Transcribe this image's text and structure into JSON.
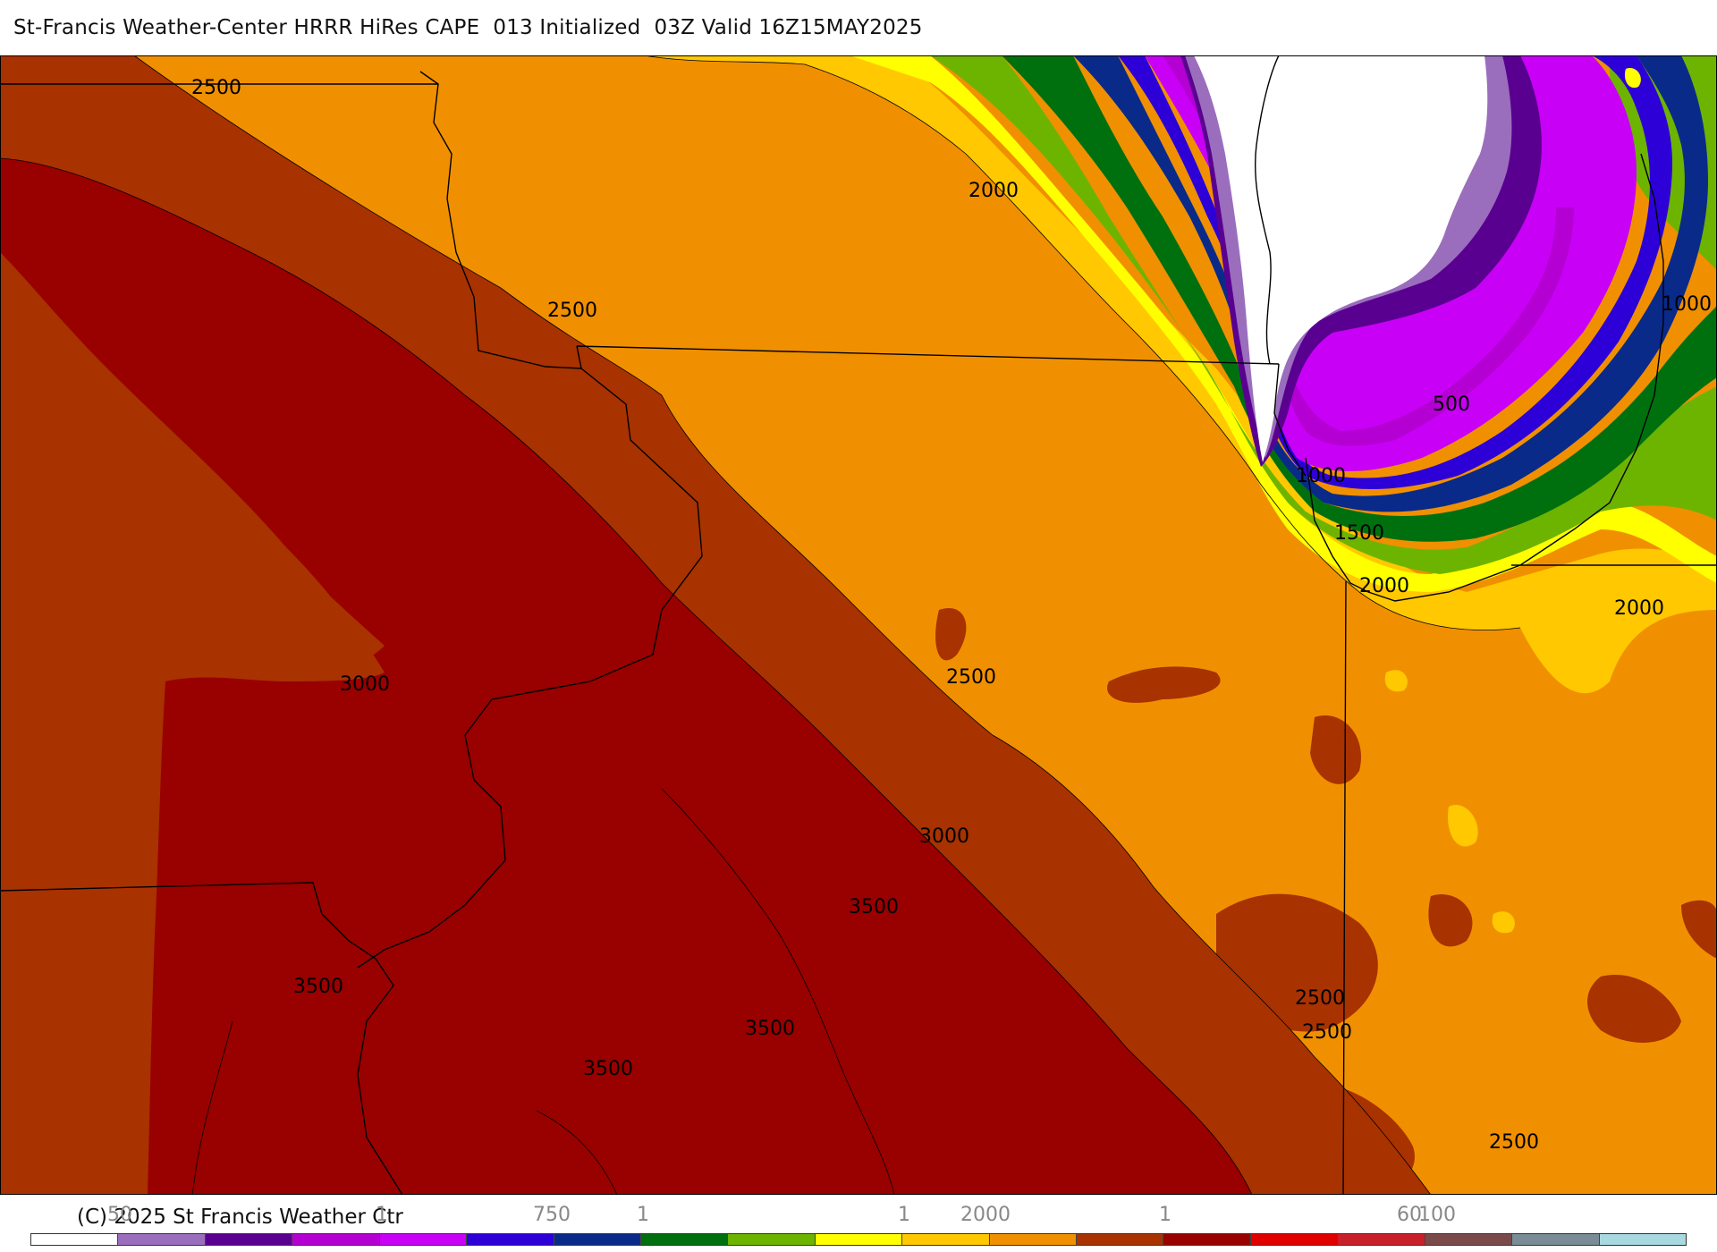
{
  "header": {
    "title": "St-Francis Weather-Center HRRR HiRes CAPE  013 Initialized  03Z Valid 16Z15MAY2025"
  },
  "map": {
    "contour_labels": [
      "2500",
      "2000",
      "2500",
      "1000",
      "500",
      "1000",
      "1500",
      "2000",
      "2000",
      "3000",
      "2500",
      "3000",
      "3500",
      "3500",
      "3500",
      "3500",
      "2500",
      "2500",
      "2500"
    ],
    "colors": {
      "white_region": "#ffffff",
      "lavender": "#9a6ebd",
      "dark_purple": "#5a0090",
      "purple": "#b400d2",
      "magenta": "#c800f5",
      "blue": "#2d00d8",
      "navy": "#0a2a8a",
      "dark_green": "#00700f",
      "green": "#6db400",
      "yellow": "#ffff00",
      "gold": "#ffc800",
      "orange": "#f09000",
      "rust": "#a83200",
      "dark_red": "#990000"
    }
  },
  "footer": {
    "copyright": "(C) 2025 St Francis Weather Ctr",
    "scale_labels": [
      "50",
      "1",
      "750",
      "1",
      "1",
      "2000",
      "1",
      "60",
      "100"
    ]
  },
  "colorbar": {
    "colors": [
      "#ffffff",
      "#9a6ebd",
      "#5a0090",
      "#b400d2",
      "#c800f5",
      "#2d00d8",
      "#0a2a8a",
      "#00700f",
      "#6db400",
      "#ffff00",
      "#ffc800",
      "#f09000",
      "#a83200",
      "#990000",
      "#e00000",
      "#c8202a",
      "#7a4a4a",
      "#7a8c96",
      "#a8d8e0"
    ]
  }
}
